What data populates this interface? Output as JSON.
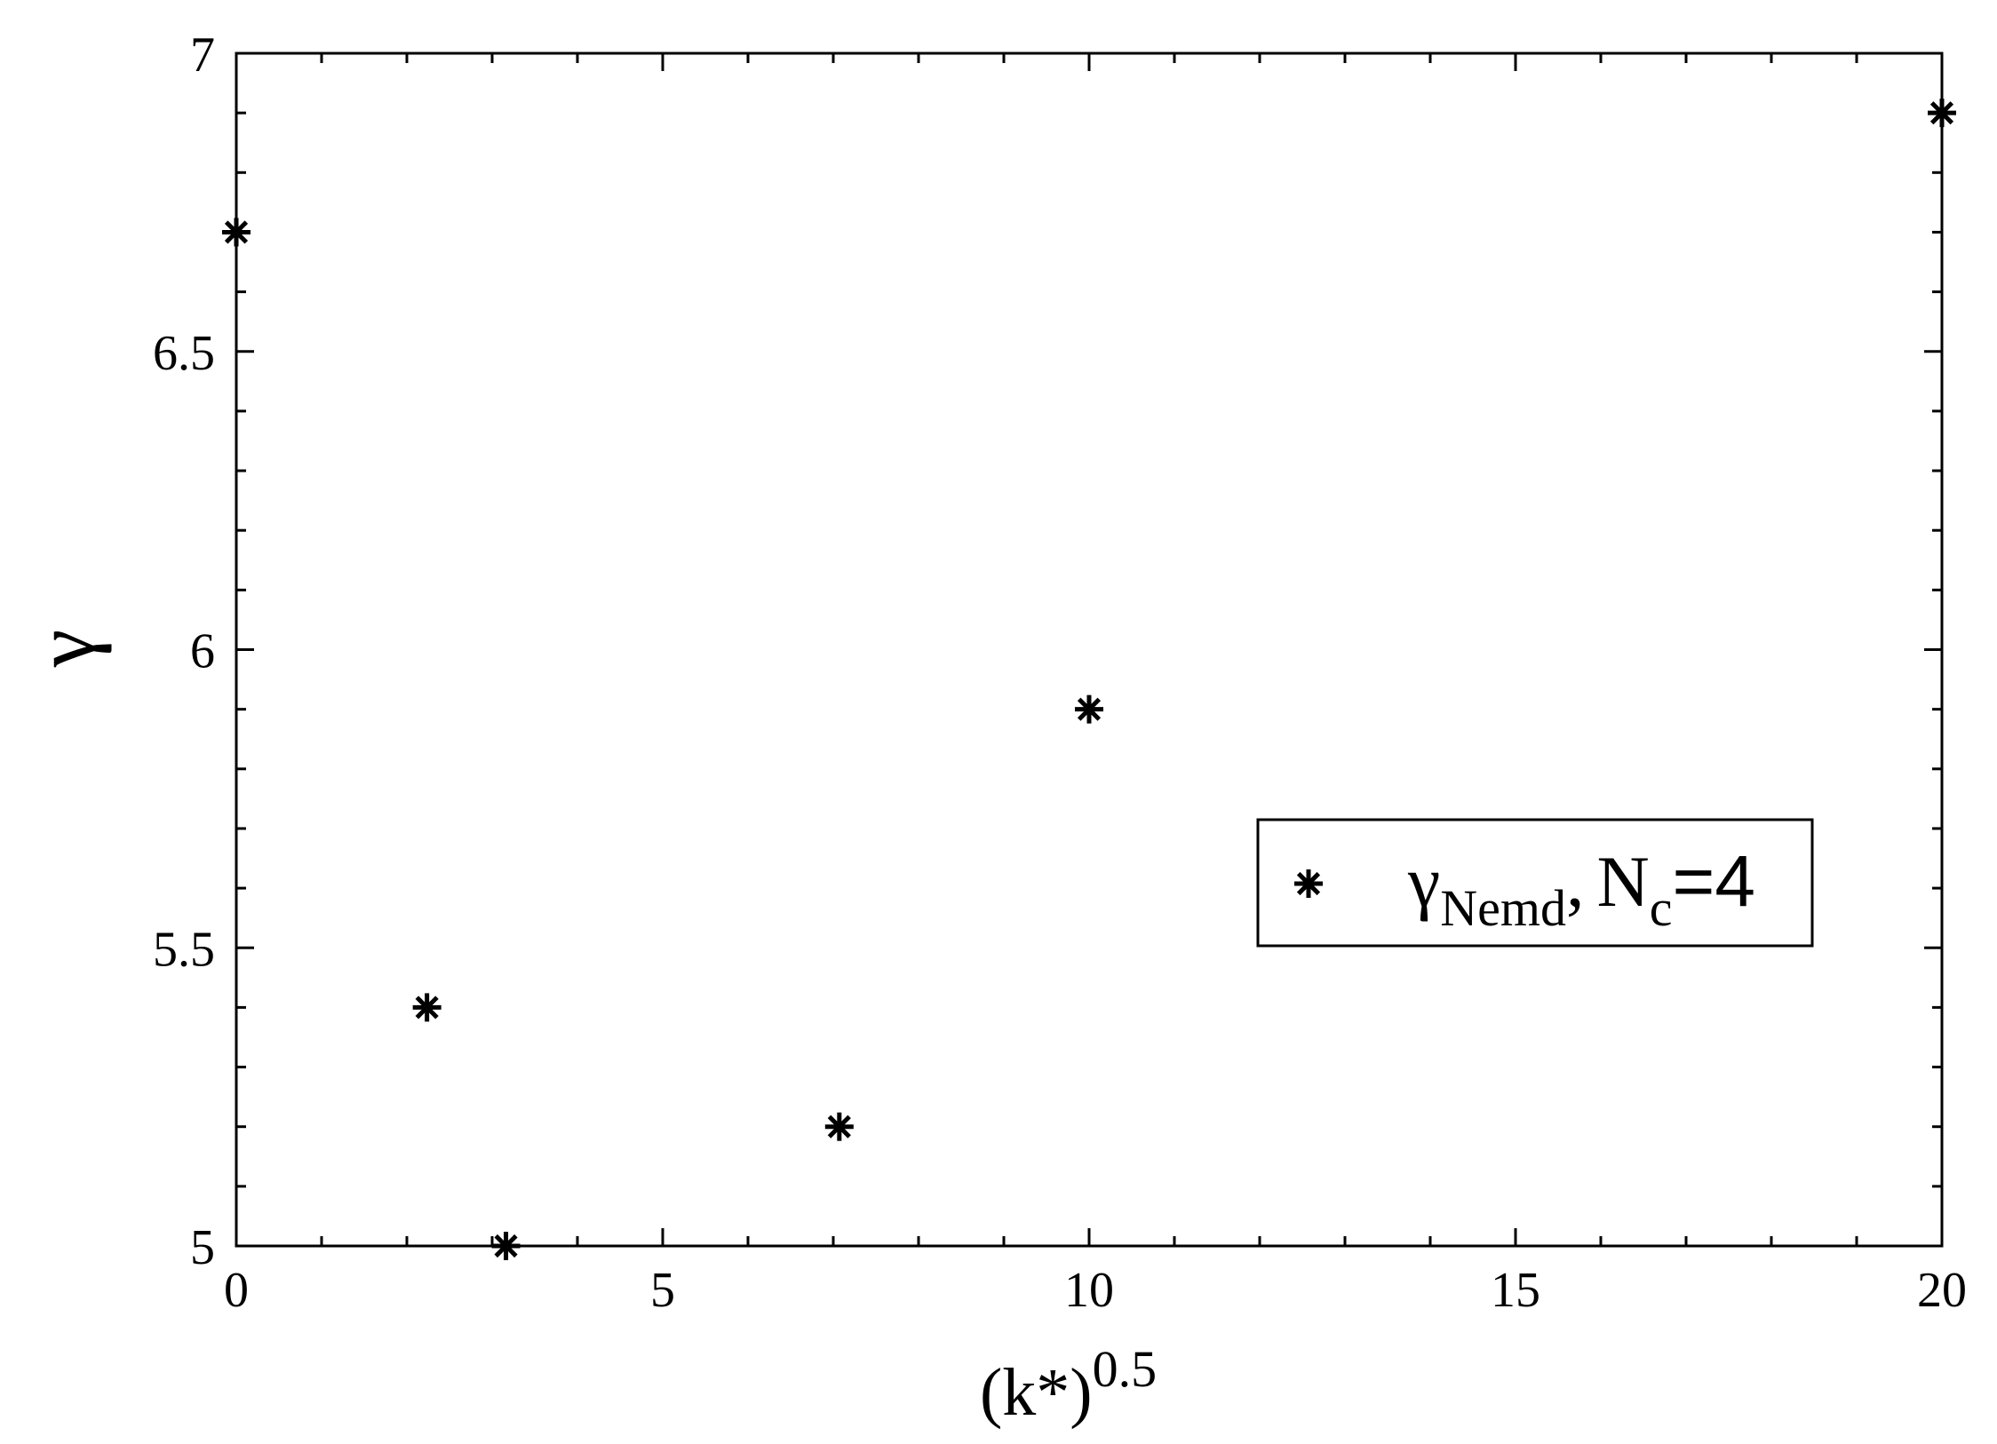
{
  "chart_data": {
    "type": "scatter",
    "title": "",
    "xlabel": "(k*)",
    "xlabel_sup": "0.5",
    "ylabel": "γ",
    "xlim": [
      0,
      20
    ],
    "ylim": [
      5,
      7
    ],
    "x_ticks": [
      0,
      5,
      10,
      15,
      20
    ],
    "x_tick_labels": [
      "0",
      "5",
      "10",
      "15",
      "20"
    ],
    "y_ticks": [
      5,
      5.5,
      6,
      6.5,
      7
    ],
    "y_tick_labels": [
      "5",
      "5.5",
      "6",
      "6.5",
      "7"
    ],
    "grid": false,
    "legend_position": "right",
    "marker": "asterisk",
    "series": [
      {
        "name": "γNemd, Nc=4",
        "x": [
          0,
          2.236,
          3.162,
          7.071,
          10,
          20
        ],
        "y": [
          6.7,
          5.4,
          5.0,
          5.2,
          5.9,
          6.9
        ]
      }
    ],
    "legend": {
      "symbol": "γ",
      "symbol_sub": "Nemd",
      "comma": ",",
      "var": "N",
      "var_sub": "c",
      "value": "=4"
    }
  },
  "colors": {
    "axis": "#000000",
    "marker": "#000000",
    "background": "#ffffff"
  }
}
